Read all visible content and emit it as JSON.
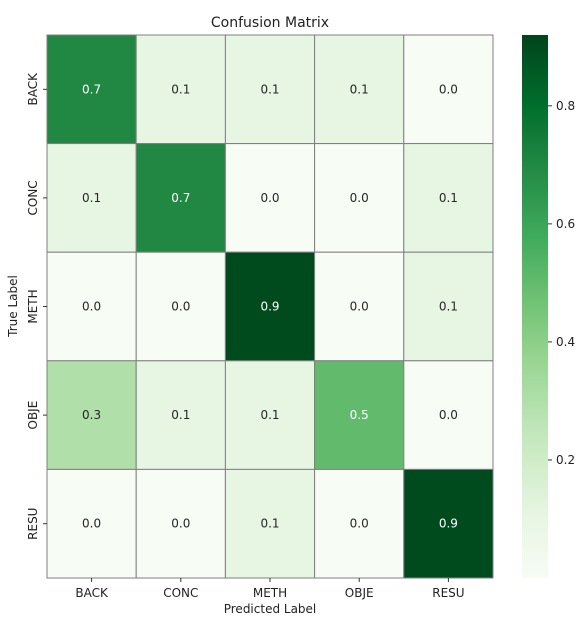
{
  "chart_data": {
    "type": "heatmap",
    "title": "Confusion Matrix",
    "xlabel": "Predicted Label",
    "ylabel": "True Label",
    "x_categories": [
      "BACK",
      "CONC",
      "METH",
      "OBJE",
      "RESU"
    ],
    "y_categories": [
      "BACK",
      "CONC",
      "METH",
      "OBJE",
      "RESU"
    ],
    "values": [
      [
        0.7,
        0.1,
        0.1,
        0.1,
        0.0
      ],
      [
        0.1,
        0.7,
        0.0,
        0.0,
        0.1
      ],
      [
        0.0,
        0.0,
        0.9,
        0.0,
        0.1
      ],
      [
        0.3,
        0.1,
        0.1,
        0.5,
        0.0
      ],
      [
        0.0,
        0.0,
        0.1,
        0.0,
        0.9
      ]
    ],
    "cell_labels": [
      [
        "0.7",
        "0.1",
        "0.1",
        "0.1",
        "0.0"
      ],
      [
        "0.1",
        "0.7",
        "0.0",
        "0.0",
        "0.1"
      ],
      [
        "0.0",
        "0.0",
        "0.9",
        "0.0",
        "0.1"
      ],
      [
        "0.3",
        "0.1",
        "0.1",
        "0.5",
        "0.0"
      ],
      [
        "0.0",
        "0.0",
        "0.1",
        "0.0",
        "0.9"
      ]
    ],
    "colormap": "Greens",
    "color_range": [
      0.0,
      0.92
    ],
    "colorbar_ticks": [
      {
        "value": 0.2,
        "label": "0.2"
      },
      {
        "value": 0.4,
        "label": "0.4"
      },
      {
        "value": 0.6,
        "label": "0.6"
      },
      {
        "value": 0.8,
        "label": "0.8"
      }
    ],
    "colorbar_placement": "right",
    "grid": true
  }
}
